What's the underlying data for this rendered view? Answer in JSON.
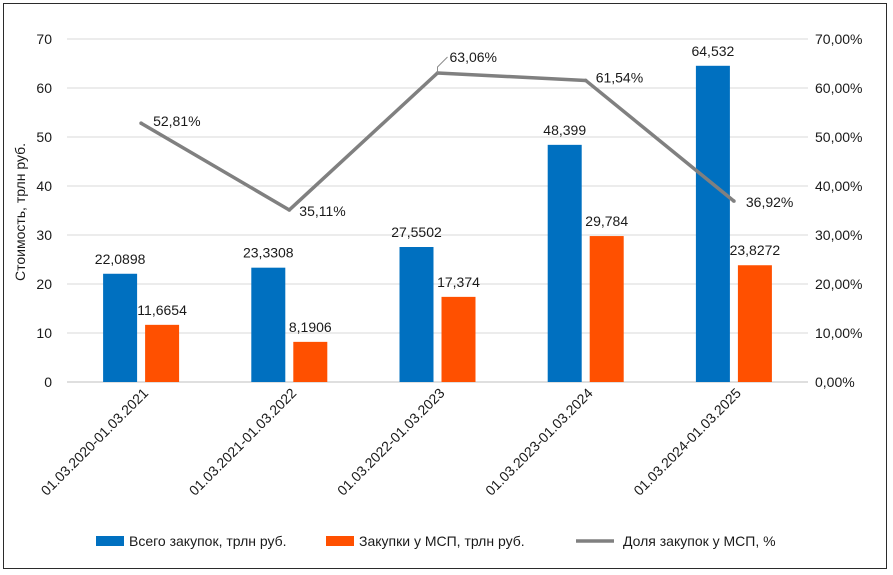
{
  "chart_data": {
    "type": "bar",
    "categories": [
      "01.03.2020-01.03.2021",
      "01.03.2021-01.03.2022",
      "01.03.2022-01.03.2023",
      "01.03.2023-01.03.2024",
      "01.03.2024-01.03.2025"
    ],
    "series": [
      {
        "name": "Всего закупок, трлн руб.",
        "kind": "bar",
        "axis": "left",
        "color": "#0070c0",
        "values": [
          22.0898,
          23.3308,
          27.5502,
          48.399,
          64.532
        ],
        "labels": [
          "22,0898",
          "23,3308",
          "27,5502",
          "48,399",
          "64,532"
        ]
      },
      {
        "name": "Закупки у МСП, трлн руб.",
        "kind": "bar",
        "axis": "left",
        "color": "#ff5000",
        "values": [
          11.6654,
          8.1906,
          17.374,
          29.784,
          23.8272
        ],
        "labels": [
          "11,6654",
          "8,1906",
          "17,374",
          "29,784",
          "23,8272"
        ]
      },
      {
        "name": "Доля закупок у МСП, %",
        "kind": "line",
        "axis": "right",
        "color": "#808080",
        "values": [
          52.81,
          35.11,
          63.06,
          61.54,
          36.92
        ],
        "labels": [
          "52,81%",
          "35,11%",
          "63,06%",
          "61,54%",
          "36,92%"
        ]
      }
    ],
    "ylabel": "Стоимость, трлн руб.",
    "ylim": [
      0,
      70
    ],
    "y_ticks": [
      "0",
      "10",
      "20",
      "30",
      "40",
      "50",
      "60",
      "70"
    ],
    "y2lim": [
      0,
      70
    ],
    "y2_ticks": [
      "0,00%",
      "10,00%",
      "20,00%",
      "30,00%",
      "40,00%",
      "50,00%",
      "60,00%",
      "70,00%"
    ],
    "grid": true,
    "legend": "bottom"
  }
}
